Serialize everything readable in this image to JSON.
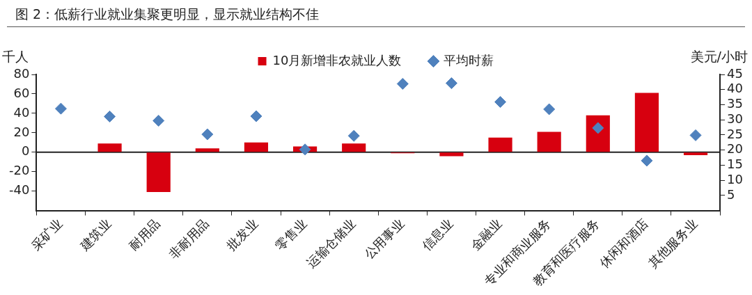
{
  "chart_data": {
    "type": "bar",
    "title": "图 2：低薪行业就业集聚更明显，显示就业结构不佳",
    "categories": [
      "采矿业",
      "建筑业",
      "耐用品",
      "非耐用品",
      "批发业",
      "零售业",
      "运输仓储业",
      "公用事业",
      "信息业",
      "金融业",
      "专业和商业服务",
      "教育和医疗服务",
      "休闲和酒店",
      "其他服务业"
    ],
    "series": [
      {
        "name": "10月新增非农就业人数",
        "color": "#d7000f",
        "values": [
          null,
          9,
          -41,
          4,
          10,
          6,
          9,
          -1,
          -4,
          15,
          21,
          38,
          61,
          -3
        ]
      },
      {
        "name": "平均时薪",
        "type": "scatter",
        "axis": "y2",
        "color": "#4f81bd",
        "marker": "diamond",
        "values": [
          33.7,
          31.1,
          29.7,
          25.2,
          31.2,
          20.2,
          24.7,
          41.9,
          42.1,
          35.9,
          33.5,
          27.3,
          16.5,
          24.9
        ]
      }
    ],
    "ylabel": "千人",
    "y2label": "美元/小时",
    "ylim": [
      -60,
      80
    ],
    "yticks": [
      -40,
      -20,
      0,
      20,
      40,
      60,
      80
    ],
    "y2lim": [
      0,
      45
    ],
    "y2ticks": [
      5,
      10,
      15,
      20,
      25,
      30,
      35,
      40,
      45
    ],
    "ref_lines": [
      {
        "axis": "y",
        "value": 0,
        "color": "#222222"
      }
    ],
    "legend": "top",
    "grid": false
  }
}
